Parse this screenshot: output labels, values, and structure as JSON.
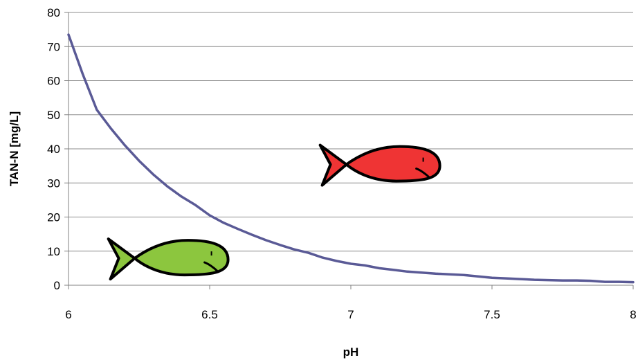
{
  "chart_data": {
    "type": "line",
    "xlabel": "pH",
    "ylabel": "TAN-N [mg/L]",
    "xlim": [
      6,
      8
    ],
    "ylim": [
      0,
      80
    ],
    "x_ticks": [
      "6",
      "6.5",
      "7",
      "7.5",
      "8"
    ],
    "y_ticks": [
      "0",
      "10",
      "20",
      "30",
      "40",
      "50",
      "60",
      "70",
      "80"
    ],
    "grid": "horizontal",
    "legend": "none",
    "series": [
      {
        "x": [
          6.0,
          6.05,
          6.1,
          6.15,
          6.2,
          6.25,
          6.3,
          6.35,
          6.4,
          6.45,
          6.5,
          6.55,
          6.6,
          6.65,
          6.7,
          6.75,
          6.8,
          6.85,
          6.9,
          6.95,
          7.0,
          7.05,
          7.1,
          7.15,
          7.2,
          7.25,
          7.3,
          7.35,
          7.4,
          7.45,
          7.5,
          7.55,
          7.6,
          7.65,
          7.7,
          7.75,
          7.8,
          7.85,
          7.9,
          7.95,
          8.0
        ],
        "values": [
          73.5,
          62.0,
          51.5,
          46.0,
          41.0,
          36.5,
          32.5,
          29.0,
          26.0,
          23.5,
          20.5,
          18.3,
          16.5,
          14.8,
          13.2,
          11.8,
          10.5,
          9.5,
          8.1,
          7.1,
          6.3,
          5.8,
          5.0,
          4.5,
          4.0,
          3.7,
          3.4,
          3.2,
          3.0,
          2.6,
          2.2,
          2.0,
          1.8,
          1.6,
          1.5,
          1.4,
          1.4,
          1.3,
          1.0,
          1.0,
          0.9
        ],
        "color": "#5a5a96"
      }
    ],
    "annotations": [
      {
        "icon": "fish-icon",
        "color": "#8cc63e",
        "x": 6.57,
        "y": 7.5
      },
      {
        "icon": "fish-icon",
        "color": "#ef3434",
        "x": 7.32,
        "y": 35
      }
    ]
  }
}
